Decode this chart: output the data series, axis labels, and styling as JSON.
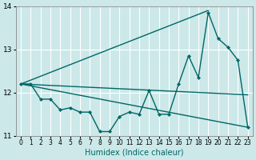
{
  "xlabel": "Humidex (Indice chaleur)",
  "xlim": [
    -0.5,
    23.5
  ],
  "ylim": [
    11,
    14
  ],
  "yticks": [
    11,
    12,
    13,
    14
  ],
  "xticks": [
    0,
    1,
    2,
    3,
    4,
    5,
    6,
    7,
    8,
    9,
    10,
    11,
    12,
    13,
    14,
    15,
    16,
    17,
    18,
    19,
    20,
    21,
    22,
    23
  ],
  "bg_color": "#cce8e8",
  "grid_color": "#ffffff",
  "line_color": "#006666",
  "series_main": {
    "x": [
      0,
      1,
      2,
      3,
      4,
      5,
      6,
      7,
      8,
      9,
      10,
      11,
      12,
      13,
      14,
      15,
      16,
      17,
      18,
      19,
      20,
      21,
      22,
      23
    ],
    "y": [
      12.2,
      12.2,
      11.85,
      11.85,
      11.6,
      11.65,
      11.55,
      11.55,
      11.1,
      11.1,
      11.45,
      11.55,
      11.5,
      12.05,
      11.5,
      11.5,
      12.2,
      12.85,
      12.35,
      13.85,
      13.25,
      13.05,
      12.75,
      11.2
    ]
  },
  "line_upper": {
    "x": [
      0,
      19
    ],
    "y": [
      12.2,
      13.9
    ]
  },
  "line_mid": {
    "x": [
      0,
      23
    ],
    "y": [
      12.2,
      11.95
    ]
  },
  "line_lower": {
    "x": [
      0,
      23
    ],
    "y": [
      12.2,
      11.2
    ]
  }
}
